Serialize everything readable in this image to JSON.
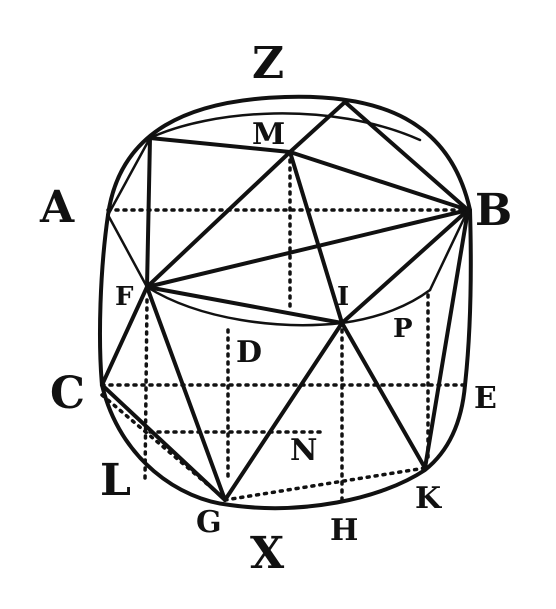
{
  "labels": {
    "Z": "Z",
    "M": "M",
    "A": "A",
    "B": "B",
    "F": "F",
    "I": "I",
    "P": "P",
    "D": "D",
    "C": "C",
    "E": "E",
    "N": "N",
    "L": "L",
    "G": "G",
    "H": "H",
    "K": "K",
    "X": "X"
  }
}
